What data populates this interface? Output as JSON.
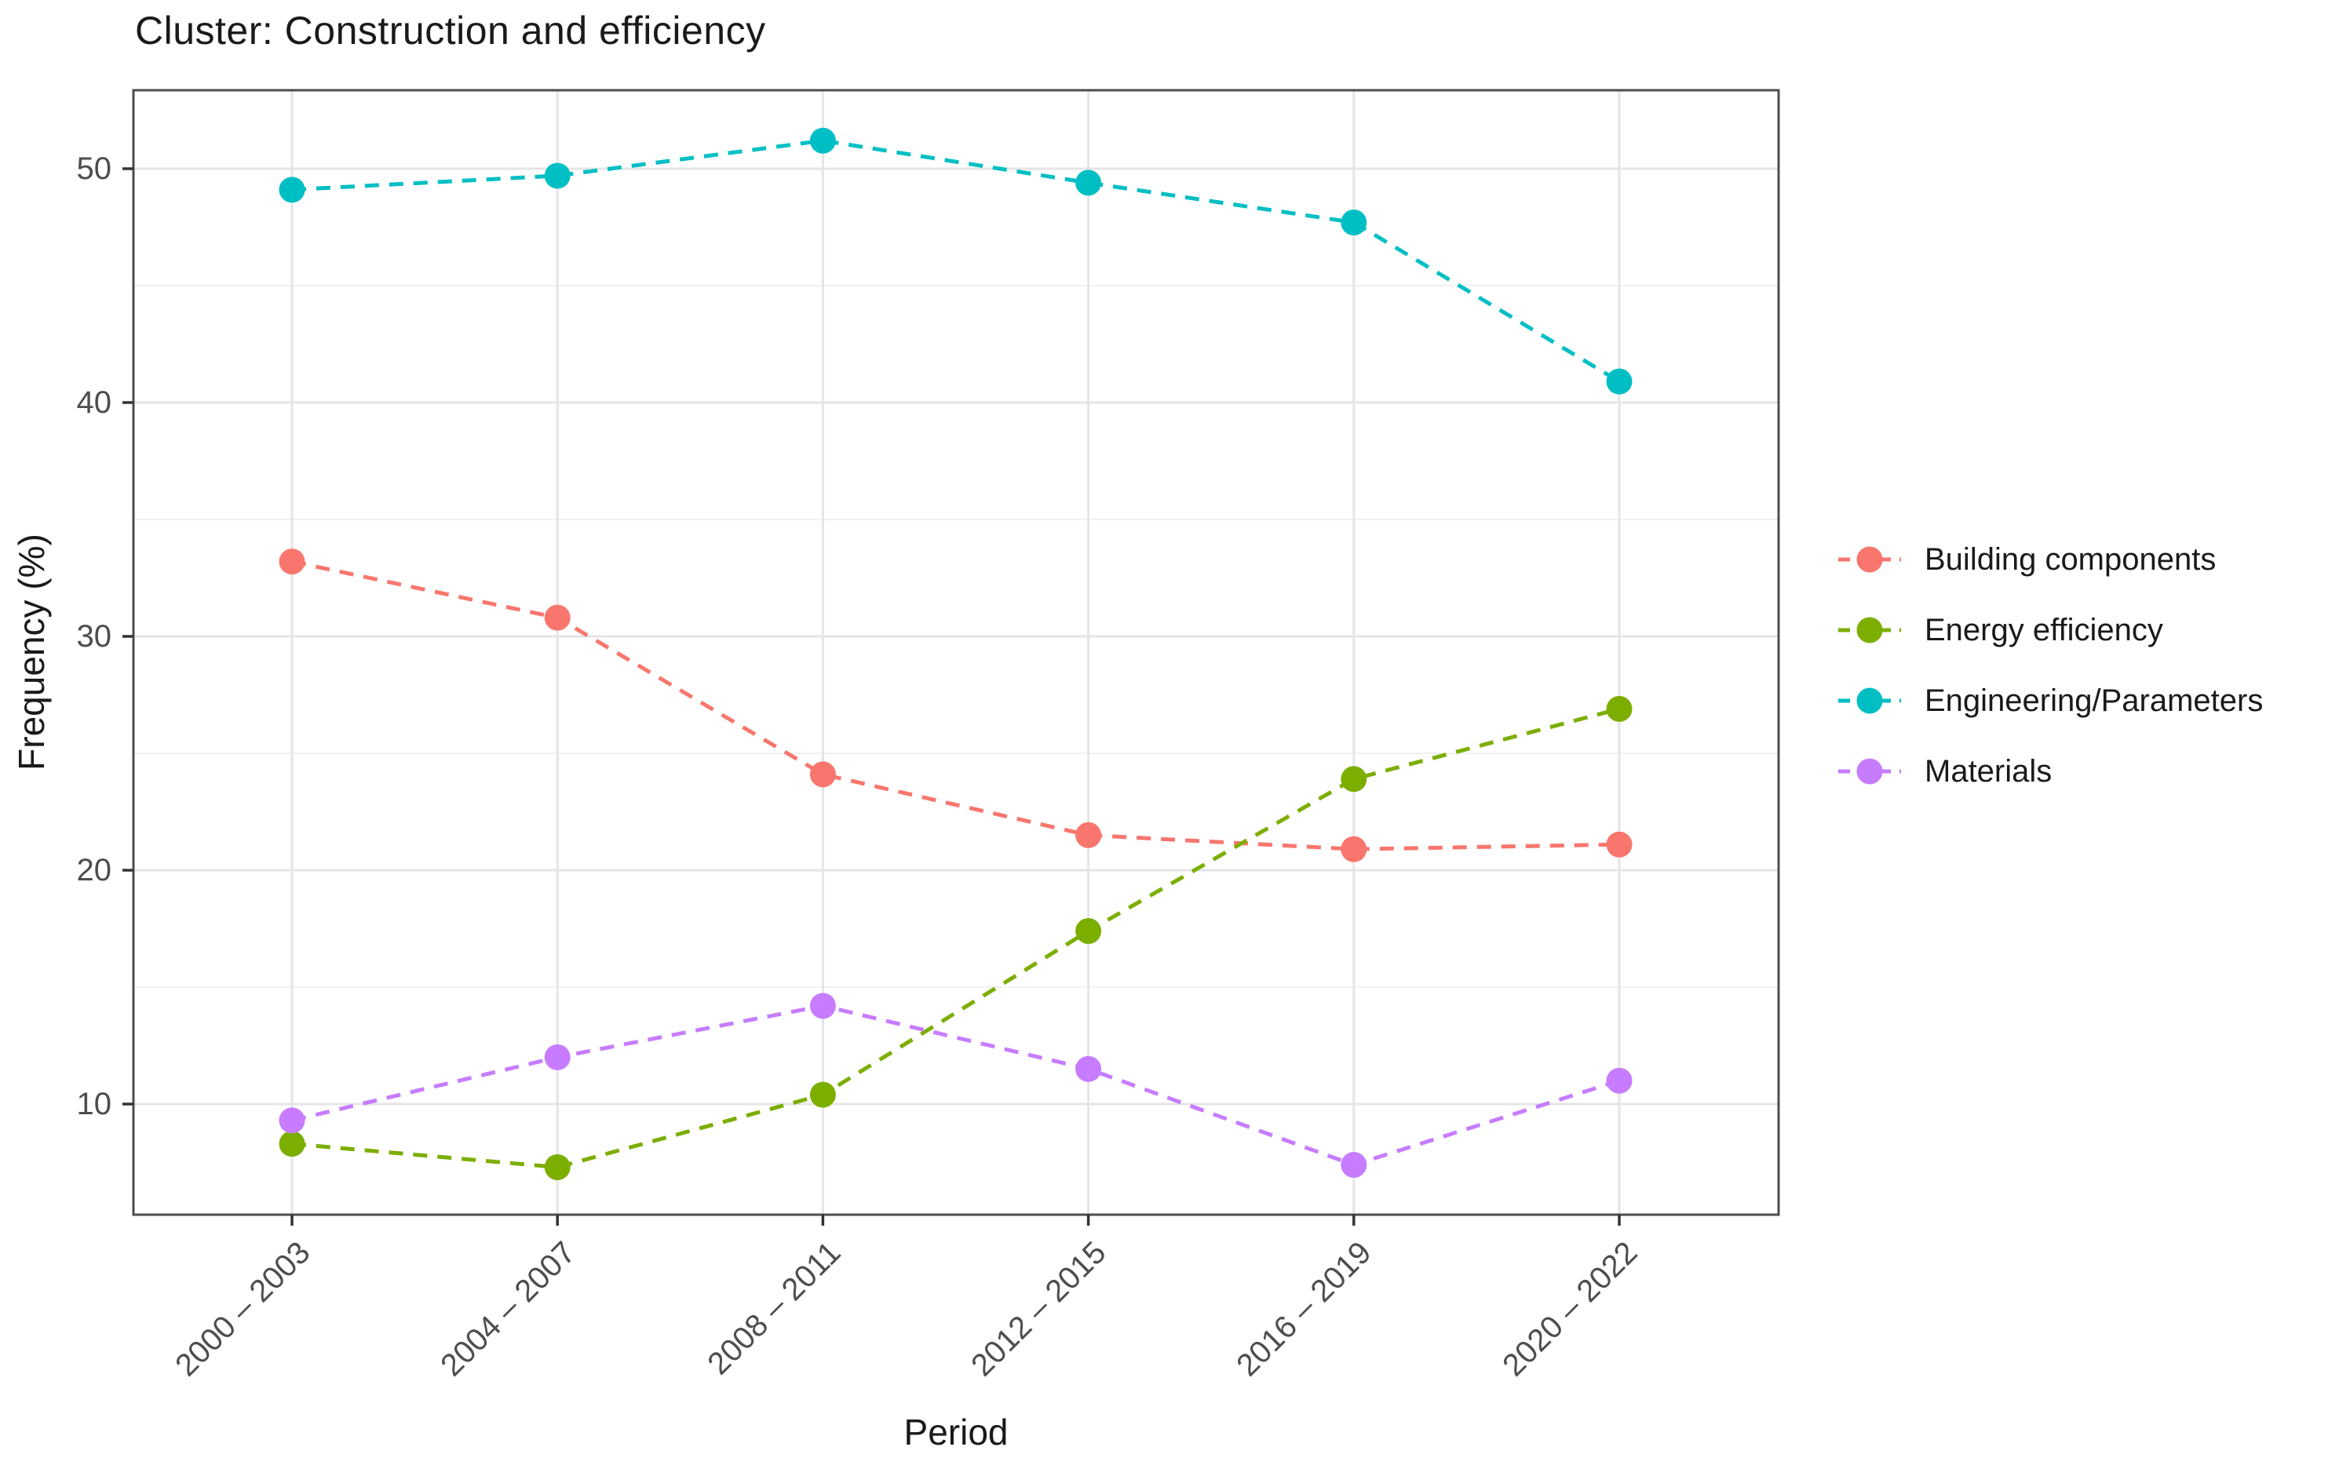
{
  "title": "Cluster: Construction and efficiency",
  "chart_data": {
    "type": "line",
    "title": "Cluster: Construction and efficiency",
    "xlabel": "Period",
    "ylabel": "Frequency (%)",
    "categories": [
      "2000 – 2003",
      "2004 – 2007",
      "2008 – 2011",
      "2012 – 2015",
      "2016 – 2019",
      "2020 – 2022"
    ],
    "series": [
      {
        "name": "Building components",
        "color": "#F8766D",
        "values": [
          33.2,
          30.8,
          24.1,
          21.5,
          20.9,
          21.1
        ]
      },
      {
        "name": "Energy efficiency",
        "color": "#7CAE00",
        "values": [
          8.3,
          7.3,
          10.4,
          17.4,
          23.9,
          26.9
        ]
      },
      {
        "name": "Engineering/Parameters",
        "color": "#00BFC4",
        "values": [
          49.1,
          49.7,
          51.2,
          49.4,
          47.7,
          40.9
        ]
      },
      {
        "name": "Materials",
        "color": "#C77CFF",
        "values": [
          9.3,
          12.0,
          14.2,
          11.5,
          7.4,
          11.0
        ]
      }
    ],
    "y_ticks": [
      10,
      20,
      30,
      40,
      50
    ],
    "y_minor_gridlines": [
      15,
      25,
      35,
      45
    ],
    "ylim": [
      5.3,
      53.4
    ],
    "line_style": "dashed",
    "marker": "circle",
    "legend_position": "right",
    "grid": true
  },
  "style_colors": {
    "grid_major": "#e5e5e5",
    "grid_minor": "#efefef",
    "panel_border": "#4d4d4d",
    "tick_mark": "#333333",
    "tick_label": "#4d4d4d",
    "text": "#1a1a1a"
  }
}
